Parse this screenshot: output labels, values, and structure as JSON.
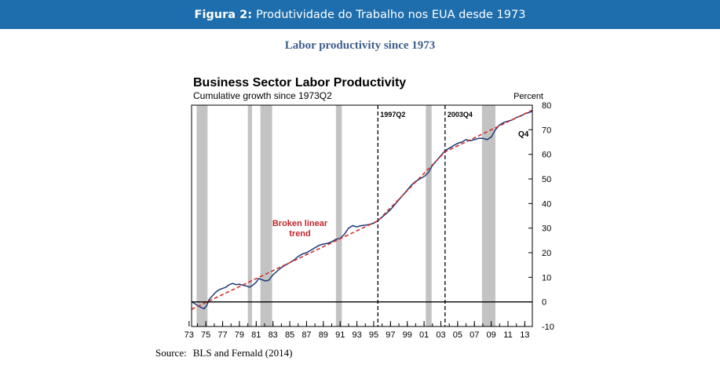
{
  "banner": {
    "prefix": "Figura 2:",
    "title": "Produtividade do Trabalho nos EUA desde 1973"
  },
  "subtitle": "Labor productivity since 1973",
  "source": {
    "label": "Source:",
    "text": "BLS and Fernald (2014)"
  },
  "chart_data": {
    "type": "line",
    "title": "Business Sector Labor Productivity",
    "subtitle": "Cumulative growth since 1973Q2",
    "ylabel": "Percent",
    "xlim": [
      1973,
      2014
    ],
    "ylim": [
      -10,
      80
    ],
    "y_ticks": [
      80,
      70,
      60,
      50,
      40,
      30,
      20,
      10,
      0,
      -10
    ],
    "x_ticks": [
      {
        "year": 1973,
        "label": "73"
      },
      {
        "year": 1975,
        "label": "75"
      },
      {
        "year": 1977,
        "label": "77"
      },
      {
        "year": 1979,
        "label": "79"
      },
      {
        "year": 1981,
        "label": "81"
      },
      {
        "year": 1983,
        "label": "83"
      },
      {
        "year": 1985,
        "label": "85"
      },
      {
        "year": 1987,
        "label": "87"
      },
      {
        "year": 1989,
        "label": "89"
      },
      {
        "year": 1991,
        "label": "91"
      },
      {
        "year": 1993,
        "label": "93"
      },
      {
        "year": 1995,
        "label": "95"
      },
      {
        "year": 1997,
        "label": "97"
      },
      {
        "year": 1999,
        "label": "99"
      },
      {
        "year": 2001,
        "label": "01"
      },
      {
        "year": 2003,
        "label": "03"
      },
      {
        "year": 2005,
        "label": "05"
      },
      {
        "year": 2007,
        "label": "07"
      },
      {
        "year": 2009,
        "label": "09"
      },
      {
        "year": 2011,
        "label": "11"
      },
      {
        "year": 2013,
        "label": "13"
      }
    ],
    "recessions": [
      [
        1973.9,
        1975.2
      ],
      [
        1980.0,
        1980.5
      ],
      [
        1981.5,
        1982.9
      ],
      [
        1990.5,
        1991.2
      ],
      [
        2001.2,
        2001.9
      ],
      [
        2007.9,
        2009.5
      ]
    ],
    "breaks": [
      {
        "year": 1995.5,
        "label": "1997Q2"
      },
      {
        "year": 2003.5,
        "label": "2003Q4"
      }
    ],
    "end_label": "Q4",
    "trend_label": [
      "Broken linear",
      "trend"
    ],
    "series": [
      {
        "points": [
          [
            1973.3,
            0
          ],
          [
            1973.6,
            -0.5
          ],
          [
            1974.0,
            -1.5
          ],
          [
            1974.4,
            -2.2
          ],
          [
            1974.8,
            -2.8
          ],
          [
            1975.1,
            -1.5
          ],
          [
            1975.4,
            1.0
          ],
          [
            1975.8,
            2.5
          ],
          [
            1976.2,
            4.0
          ],
          [
            1976.6,
            5.0
          ],
          [
            1977.0,
            5.5
          ],
          [
            1977.4,
            6.0
          ],
          [
            1977.8,
            7.0
          ],
          [
            1978.2,
            7.5
          ],
          [
            1978.6,
            7.0
          ],
          [
            1979.0,
            7.2
          ],
          [
            1979.4,
            6.8
          ],
          [
            1979.8,
            6.5
          ],
          [
            1980.2,
            6.0
          ],
          [
            1980.6,
            6.8
          ],
          [
            1981.0,
            8.0
          ],
          [
            1981.3,
            9.5
          ],
          [
            1981.7,
            9.0
          ],
          [
            1982.1,
            8.5
          ],
          [
            1982.5,
            8.8
          ],
          [
            1983.0,
            11.0
          ],
          [
            1983.5,
            12.5
          ],
          [
            1984.0,
            14.0
          ],
          [
            1984.5,
            15.0
          ],
          [
            1985.0,
            16.0
          ],
          [
            1985.5,
            17.0
          ],
          [
            1986.0,
            18.5
          ],
          [
            1986.5,
            19.5
          ],
          [
            1987.0,
            20.0
          ],
          [
            1987.5,
            21.0
          ],
          [
            1988.0,
            22.0
          ],
          [
            1988.5,
            23.0
          ],
          [
            1989.0,
            23.5
          ],
          [
            1989.5,
            23.8
          ],
          [
            1990.0,
            24.5
          ],
          [
            1990.5,
            25.5
          ],
          [
            1991.0,
            25.8
          ],
          [
            1991.5,
            27.5
          ],
          [
            1992.0,
            30.0
          ],
          [
            1992.5,
            31.0
          ],
          [
            1993.0,
            30.5
          ],
          [
            1993.5,
            31.0
          ],
          [
            1994.0,
            31.2
          ],
          [
            1994.5,
            31.5
          ],
          [
            1995.0,
            32.0
          ],
          [
            1995.5,
            33.0
          ],
          [
            1996.0,
            34.5
          ],
          [
            1996.5,
            36.0
          ],
          [
            1997.0,
            37.5
          ],
          [
            1997.5,
            39.5
          ],
          [
            1998.0,
            41.5
          ],
          [
            1998.5,
            43.5
          ],
          [
            1999.0,
            45.5
          ],
          [
            1999.5,
            47.5
          ],
          [
            2000.0,
            49.0
          ],
          [
            2000.5,
            50.0
          ],
          [
            2001.0,
            51.0
          ],
          [
            2001.5,
            52.5
          ],
          [
            2002.0,
            55.5
          ],
          [
            2002.5,
            57.5
          ],
          [
            2003.0,
            59.5
          ],
          [
            2003.5,
            61.5
          ],
          [
            2004.0,
            62.5
          ],
          [
            2004.5,
            63.5
          ],
          [
            2005.0,
            64.5
          ],
          [
            2005.5,
            65.0
          ],
          [
            2006.0,
            66.0
          ],
          [
            2006.5,
            65.5
          ],
          [
            2007.0,
            66.0
          ],
          [
            2007.5,
            66.5
          ],
          [
            2008.0,
            66.5
          ],
          [
            2008.5,
            66.0
          ],
          [
            2009.0,
            67.0
          ],
          [
            2009.5,
            70.0
          ],
          [
            2010.0,
            72.0
          ],
          [
            2010.5,
            73.0
          ],
          [
            2011.0,
            73.5
          ],
          [
            2011.5,
            74.0
          ],
          [
            2012.0,
            75.0
          ],
          [
            2012.5,
            75.5
          ],
          [
            2013.0,
            76.5
          ],
          [
            2013.5,
            77.0
          ],
          [
            2013.9,
            77.5
          ]
        ]
      },
      {
        "style": "dashed",
        "points": [
          [
            1973.3,
            -3.0
          ],
          [
            1995.5,
            33.0
          ],
          [
            2003.5,
            61.0
          ],
          [
            2013.9,
            78.0
          ]
        ]
      }
    ]
  }
}
